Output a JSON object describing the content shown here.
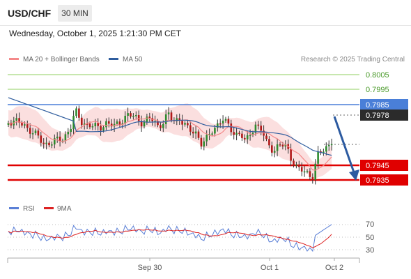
{
  "header": {
    "symbol": "USD/CHF",
    "timeframe": "30 MIN",
    "datetime": "Wednesday, October 1, 2025 1:21:30 PM CET"
  },
  "legend": {
    "ma20": {
      "label": "MA 20 + Bollinger Bands",
      "color": "#f4898a"
    },
    "ma50": {
      "label": "MA 50",
      "color": "#2f5d9e"
    },
    "credit": "Research © 2025 Trading Central"
  },
  "levels": [
    {
      "label": "0.8005",
      "style": "green-text"
    },
    {
      "label": "0.7995",
      "style": "green-text"
    },
    {
      "label": "0.7985",
      "style": "blue-box"
    },
    {
      "label": "0.7978",
      "style": "dark-box"
    },
    {
      "label": "0.7945",
      "style": "red-box"
    },
    {
      "label": "0.7935",
      "style": "red-box"
    }
  ],
  "rsi_legend": {
    "rsi": {
      "label": "RSI",
      "color": "#5a7fd6"
    },
    "ma9": {
      "label": "9MA",
      "color": "#dd2222"
    }
  },
  "rsi_axis": [
    "70",
    "50",
    "30"
  ],
  "x_axis": [
    "Sep 30",
    "Oct 1",
    "Oct 2"
  ],
  "colors": {
    "bull": "#2e8b2e",
    "bear": "#b01818",
    "band": "#fbdcdc",
    "support": "#e00000",
    "resistance": "#4a7fd8",
    "green_level": "#8fcf5f",
    "arrow": "#2c5aa0"
  }
}
